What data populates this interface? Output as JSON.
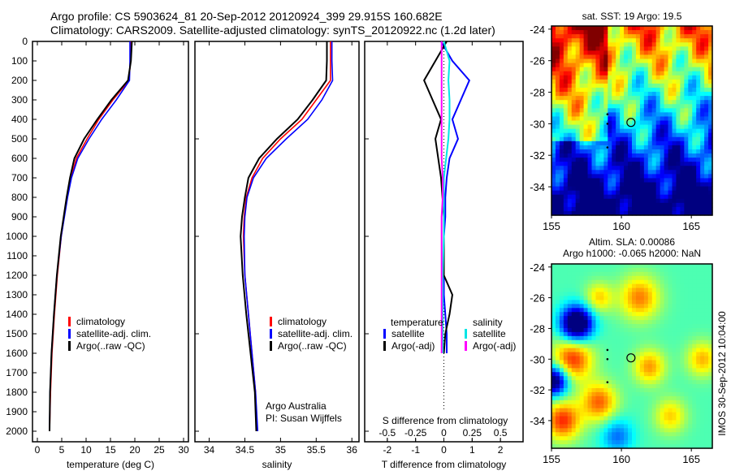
{
  "title": {
    "line1": "Argo profile: CS 5903624_81 20-Sep-2012 20120924_399 29.915S 160.682E",
    "line2": "Climatology: CARS2009. Satellite-adjusted climatology: synTS_20120922.nc (1.2d later)"
  },
  "colors": {
    "climatology": "#ff0000",
    "satellite": "#0000ff",
    "argo": "#000000",
    "sal_satellite": "#00e5e5",
    "sal_argo": "#ff00ff"
  },
  "chart_data": [
    {
      "type": "line",
      "id": "temperature",
      "xlabel": "temperature (deg C)",
      "xlim": [
        -1,
        31
      ],
      "ylim": [
        0,
        2050
      ],
      "xticks": [
        0,
        5,
        10,
        15,
        20,
        25,
        30
      ],
      "yticks": [
        0,
        100,
        200,
        300,
        400,
        500,
        600,
        700,
        800,
        900,
        1000,
        1100,
        1200,
        1300,
        1400,
        1500,
        1600,
        1700,
        1800,
        1900,
        2000
      ],
      "depth": [
        0,
        100,
        200,
        300,
        400,
        500,
        600,
        700,
        800,
        1000,
        1200,
        1400,
        1600,
        1800,
        2000
      ],
      "legend": [
        "climatology",
        "satellite-adj. clim.",
        "Argo(..raw -QC)"
      ],
      "series": [
        {
          "name": "climatology",
          "values": [
            19.2,
            19.1,
            18.8,
            15.5,
            12.6,
            10.2,
            8.0,
            6.9,
            6.1,
            4.9,
            4.1,
            3.5,
            3.0,
            2.7,
            2.5
          ]
        },
        {
          "name": "satellite-adj. clim.",
          "values": [
            19.0,
            19.0,
            18.9,
            16.2,
            13.2,
            10.6,
            8.3,
            7.0,
            6.2,
            4.9,
            4.0,
            3.4,
            2.9,
            2.6,
            2.5
          ]
        },
        {
          "name": "Argo(..raw -QC)",
          "values": [
            19.4,
            19.2,
            18.6,
            15.2,
            12.3,
            9.6,
            7.6,
            6.7,
            6.0,
            4.8,
            4.0,
            3.4,
            2.9,
            2.6,
            2.5
          ]
        }
      ]
    },
    {
      "type": "line",
      "id": "salinity",
      "xlabel": "salinity",
      "xlim": [
        33.8,
        36.1
      ],
      "ylim": [
        0,
        2050
      ],
      "xticks": [
        34,
        34.5,
        35,
        35.5,
        36
      ],
      "depth": [
        0,
        100,
        200,
        300,
        400,
        500,
        600,
        700,
        800,
        900,
        1000,
        1200,
        1400,
        1600,
        1800,
        2000
      ],
      "legend": [
        "climatology",
        "satellite-adj. clim.",
        "Argo(..raw -QC)"
      ],
      "annotation": [
        "Argo Australia",
        "PI: Susan Wijffels"
      ],
      "series": [
        {
          "name": "climatology",
          "values": [
            35.7,
            35.7,
            35.7,
            35.5,
            35.3,
            35.0,
            34.75,
            34.6,
            34.52,
            34.49,
            34.48,
            34.5,
            34.55,
            34.6,
            34.65,
            34.67
          ]
        },
        {
          "name": "satellite-adj. clim.",
          "values": [
            35.72,
            35.72,
            35.73,
            35.58,
            35.38,
            35.08,
            34.8,
            34.62,
            34.53,
            34.5,
            34.49,
            34.5,
            34.55,
            34.6,
            34.65,
            34.68
          ]
        },
        {
          "name": "Argo(..raw -QC)",
          "values": [
            35.65,
            35.65,
            35.64,
            35.45,
            35.24,
            34.95,
            34.7,
            34.55,
            34.5,
            34.46,
            34.44,
            34.47,
            34.52,
            34.58,
            34.64,
            34.66
          ]
        }
      ]
    },
    {
      "type": "line",
      "id": "difference",
      "xlabel": "T difference from climatology",
      "x2label": "S difference from climatology",
      "xlim": [
        -2.8,
        2.8
      ],
      "ylim": [
        0,
        2050
      ],
      "xticks": [
        -2,
        -1,
        0,
        1,
        2
      ],
      "x2ticks": [
        "-0.5",
        "-0.25",
        "0",
        "0.25",
        "0.5"
      ],
      "depth": [
        0,
        100,
        200,
        300,
        400,
        500,
        600,
        700,
        800,
        900,
        1000,
        1200,
        1300,
        1400,
        1500,
        1600
      ],
      "legend": {
        "temperature": "temperature",
        "salinity": "salinity",
        "t_sat": "satellite",
        "t_argo": "Argo(-adj)",
        "s_sat": "satellite",
        "s_argo": "Argo(-adj)"
      },
      "series": [
        {
          "name": "T satellite",
          "values": [
            -0.1,
            0.3,
            0.9,
            0.6,
            0.3,
            0.5,
            0.2,
            0.1,
            0.05,
            0.05,
            0.0,
            0.0,
            0.0,
            0.05,
            0.1,
            0.1
          ]
        },
        {
          "name": "T Argo(-adj)",
          "values": [
            0.1,
            -0.3,
            -0.7,
            -0.4,
            -0.1,
            -0.3,
            -0.2,
            -0.1,
            -0.05,
            0.0,
            0.0,
            0.0,
            0.3,
            0.2,
            0.05,
            0.0
          ]
        },
        {
          "name": "S satellite",
          "values": [
            0.0,
            0.05,
            0.04,
            0.05,
            0.05,
            0.04,
            0.02,
            0.0,
            0.0,
            0.0,
            0.0,
            -0.01,
            -0.01,
            -0.01,
            -0.01,
            -0.01
          ]
        },
        {
          "name": "S Argo(-adj)",
          "values": [
            -0.02,
            -0.02,
            -0.02,
            -0.02,
            -0.02,
            -0.02,
            -0.02,
            -0.01,
            -0.01,
            -0.02,
            -0.02,
            -0.02,
            -0.02,
            -0.02,
            -0.02,
            -0.02
          ]
        }
      ]
    },
    {
      "type": "heatmap",
      "id": "sst_map",
      "title": "sat. SST: 19 Argo: 19.5",
      "xlim": [
        155,
        166.5
      ],
      "ylim": [
        -35.8,
        -23.8
      ],
      "xticks": [
        155,
        160,
        165
      ],
      "yticks": [
        -24,
        -26,
        -28,
        -30,
        -32,
        -34
      ],
      "argo_position": [
        160.682,
        -29.915
      ]
    },
    {
      "type": "heatmap",
      "id": "sla_map",
      "title": "Altim. SLA: 0.00086",
      "subtitle": "Argo h1000: -0.065 h2000: NaN",
      "xlim": [
        155,
        166.5
      ],
      "ylim": [
        -35.8,
        -23.8
      ],
      "xticks": [
        155,
        160,
        165
      ],
      "yticks": [
        -24,
        -26,
        -28,
        -30,
        -32,
        -34
      ],
      "argo_position": [
        160.682,
        -29.915
      ],
      "side_label": "IMOS 30-Sep-2012 10:04:00"
    }
  ]
}
